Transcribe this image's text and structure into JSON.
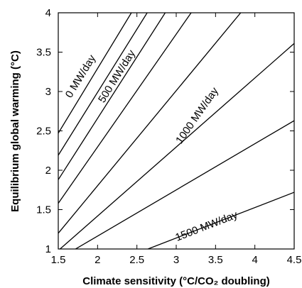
{
  "chart_data": {
    "type": "line",
    "xlabel": "Climate sensitivity (°C/CO₂ doubling)",
    "ylabel": "Equilibrium global warming (°C)",
    "xlim": [
      1.5,
      4.5
    ],
    "ylim": [
      1,
      4
    ],
    "x_ticks": [
      1.5,
      2,
      2.5,
      3,
      3.5,
      4,
      4.5
    ],
    "y_ticks": [
      1,
      1.5,
      2,
      2.5,
      3,
      3.5,
      4
    ],
    "x_tick_labels": [
      "1.5",
      "2",
      "2.5",
      "3",
      "3.5",
      "4",
      "4.5"
    ],
    "y_tick_labels": [
      "1",
      "1.5",
      "2",
      "2.5",
      "3",
      "3.5",
      "4"
    ],
    "grid": false,
    "legend": "none",
    "line_color": "#000000",
    "series": [
      {
        "x": [
          1.5,
          2.43
        ],
        "y": [
          2.47,
          4.0
        ]
      },
      {
        "x": [
          1.5,
          2.63
        ],
        "y": [
          2.19,
          4.0
        ]
      },
      {
        "x": [
          1.5,
          2.86
        ],
        "y": [
          1.88,
          4.0
        ]
      },
      {
        "x": [
          1.5,
          3.19
        ],
        "y": [
          1.58,
          4.0
        ]
      },
      {
        "x": [
          1.5,
          3.82
        ],
        "y": [
          1.2,
          4.0
        ]
      },
      {
        "x": [
          1.5,
          4.5
        ],
        "y": [
          0.98,
          3.61
        ]
      },
      {
        "x": [
          1.72,
          4.5
        ],
        "y": [
          1.0,
          2.63
        ]
      },
      {
        "x": [
          2.64,
          4.5
        ],
        "y": [
          1.0,
          1.72
        ]
      }
    ],
    "annotations": [
      {
        "text": "0 MW/day",
        "x": 1.82,
        "y": 3.17
      },
      {
        "text": "500 MW/day",
        "x": 2.28,
        "y": 3.17
      },
      {
        "text": "1000 MW/day",
        "x": 3.3,
        "y": 2.67
      },
      {
        "text": "1500 MW/day",
        "x": 3.4,
        "y": 1.25
      }
    ]
  }
}
